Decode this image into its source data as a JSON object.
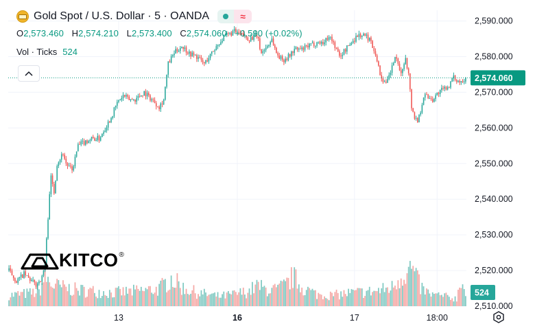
{
  "header": {
    "title": "Gold Spot / U.S. Dollar · 5 · OANDA",
    "status_symbol": "≈",
    "ohlc": [
      {
        "key": "O",
        "value": "2,573.460"
      },
      {
        "key": "H",
        "value": "2,574.210"
      },
      {
        "key": "L",
        "value": "2,573.400"
      },
      {
        "key": "C",
        "value": "2,574.060"
      }
    ],
    "change": "+0.590 (+0.02%)",
    "vol_label": "Vol · Ticks",
    "vol_value": "524"
  },
  "logo": {
    "text": "KITCO",
    "mark": "®"
  },
  "icons": {
    "collapse": "chevron-up-icon",
    "settings": "settings-icon",
    "symbol": "gold-bar-icon"
  },
  "colors": {
    "up": "#26a69a",
    "down": "#ef5350",
    "up_volume": "#80c9c2",
    "down_volume": "#f5a8a5",
    "price_tag": "#089981"
  },
  "chart_data": {
    "type": "candlestick",
    "title": "Gold Spot / U.S. Dollar · 5 · OANDA",
    "ylim": [
      2510,
      2593
    ],
    "y_ticks": [
      "2,590.000",
      "2,580.000",
      "2,570.000",
      "2,560.000",
      "2,550.000",
      "2,540.000",
      "2,530.000",
      "2,520.000",
      "2,510.000"
    ],
    "y_tick_values": [
      2590,
      2580,
      2570,
      2560,
      2550,
      2540,
      2530,
      2520,
      2510
    ],
    "x_ticks": [
      {
        "label": "13",
        "bar": 73,
        "bold": false
      },
      {
        "label": "16",
        "bar": 152,
        "bold": true
      },
      {
        "label": "17",
        "bar": 230,
        "bold": false
      },
      {
        "label": "18:00",
        "bar": 285,
        "bold": false
      }
    ],
    "bar_count": 305,
    "last_price": "2,574.060",
    "last_price_value": 2574.06,
    "last_volume": "524",
    "price_anchors": [
      [
        0,
        2520
      ],
      [
        5,
        2517
      ],
      [
        10,
        2519
      ],
      [
        15,
        2517
      ],
      [
        18,
        2516
      ],
      [
        22,
        2518
      ],
      [
        24,
        2522
      ],
      [
        26,
        2535
      ],
      [
        27,
        2542
      ],
      [
        28,
        2546
      ],
      [
        30,
        2542
      ],
      [
        32,
        2550
      ],
      [
        36,
        2553
      ],
      [
        38,
        2550
      ],
      [
        42,
        2548
      ],
      [
        46,
        2555
      ],
      [
        50,
        2556
      ],
      [
        55,
        2557
      ],
      [
        60,
        2557
      ],
      [
        64,
        2560
      ],
      [
        68,
        2563
      ],
      [
        72,
        2567
      ],
      [
        76,
        2569
      ],
      [
        80,
        2568
      ],
      [
        84,
        2568
      ],
      [
        90,
        2570
      ],
      [
        95,
        2568
      ],
      [
        100,
        2566
      ],
      [
        103,
        2568
      ],
      [
        106,
        2578
      ],
      [
        110,
        2581
      ],
      [
        115,
        2583
      ],
      [
        120,
        2581
      ],
      [
        125,
        2580
      ],
      [
        130,
        2578
      ],
      [
        135,
        2581
      ],
      [
        140,
        2584
      ],
      [
        145,
        2586
      ],
      [
        150,
        2587
      ],
      [
        155,
        2586
      ],
      [
        160,
        2585
      ],
      [
        165,
        2586
      ],
      [
        168,
        2581
      ],
      [
        172,
        2583
      ],
      [
        175,
        2585
      ],
      [
        178,
        2581
      ],
      [
        182,
        2579
      ],
      [
        186,
        2580
      ],
      [
        190,
        2582
      ],
      [
        195,
        2582
      ],
      [
        200,
        2583
      ],
      [
        205,
        2584
      ],
      [
        210,
        2584
      ],
      [
        213,
        2586
      ],
      [
        217,
        2583
      ],
      [
        220,
        2580
      ],
      [
        224,
        2582
      ],
      [
        228,
        2584
      ],
      [
        232,
        2586
      ],
      [
        236,
        2586
      ],
      [
        240,
        2585
      ],
      [
        244,
        2581
      ],
      [
        247,
        2575
      ],
      [
        251,
        2572
      ],
      [
        255,
        2577
      ],
      [
        257,
        2580
      ],
      [
        260,
        2576
      ],
      [
        262,
        2576
      ],
      [
        264,
        2580
      ],
      [
        266,
        2575
      ],
      [
        268,
        2566
      ],
      [
        270,
        2563
      ],
      [
        272,
        2562
      ],
      [
        274,
        2565
      ],
      [
        276,
        2569
      ],
      [
        278,
        2569
      ],
      [
        282,
        2568
      ],
      [
        286,
        2570
      ],
      [
        290,
        2571
      ],
      [
        293,
        2572
      ],
      [
        296,
        2574
      ],
      [
        300,
        2573
      ],
      [
        304,
        2574.06
      ]
    ],
    "volume_anchors": [
      [
        0,
        0.2
      ],
      [
        20,
        0.26
      ],
      [
        24,
        0.55
      ],
      [
        28,
        0.4
      ],
      [
        35,
        0.35
      ],
      [
        45,
        0.3
      ],
      [
        55,
        0.28
      ],
      [
        70,
        0.25
      ],
      [
        85,
        0.28
      ],
      [
        100,
        0.32
      ],
      [
        108,
        0.52
      ],
      [
        115,
        0.35
      ],
      [
        125,
        0.25
      ],
      [
        140,
        0.18
      ],
      [
        150,
        0.22
      ],
      [
        160,
        0.28
      ],
      [
        165,
        0.38
      ],
      [
        170,
        0.32
      ],
      [
        178,
        0.3
      ],
      [
        185,
        0.4
      ],
      [
        189,
        0.55
      ],
      [
        195,
        0.35
      ],
      [
        205,
        0.22
      ],
      [
        215,
        0.2
      ],
      [
        225,
        0.24
      ],
      [
        235,
        0.26
      ],
      [
        245,
        0.28
      ],
      [
        255,
        0.35
      ],
      [
        262,
        0.6
      ],
      [
        268,
        0.7
      ],
      [
        274,
        0.35
      ],
      [
        280,
        0.22
      ],
      [
        290,
        0.18
      ],
      [
        298,
        0.14
      ],
      [
        301,
        0.55
      ],
      [
        304,
        0.2
      ]
    ]
  }
}
